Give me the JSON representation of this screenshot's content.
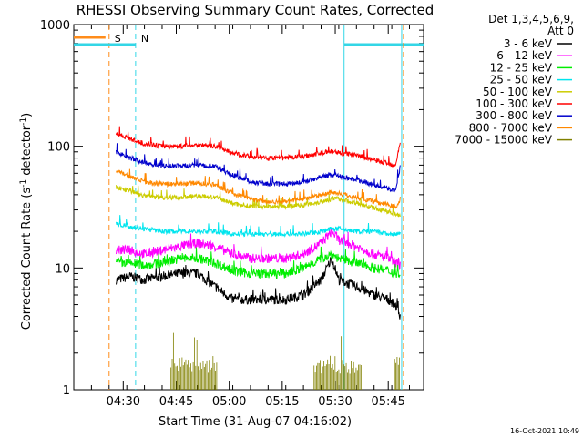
{
  "chart_data": {
    "type": "line",
    "title": "RHESSI Observing Summary Count Rates, Corrected",
    "xlabel": "Start Time (31-Aug-07 04:16:02)",
    "ylabel": "Corrected Count Rate (s",
    "ylabel_sup": "-1",
    "ylabel_tail": " detector",
    "ylabel_close": ")",
    "yscale": "log",
    "ylim": [
      1,
      1000
    ],
    "xlim_minutes": [
      0,
      99
    ],
    "x_tick_labels": [
      "04:30",
      "04:45",
      "05:00",
      "05:15",
      "05:30",
      "05:45"
    ],
    "x_tick_minutes": [
      14,
      29,
      44,
      59,
      74,
      89
    ],
    "y_tick_labels": [
      "1",
      "10",
      "100",
      "1000"
    ],
    "y_tick_values": [
      1,
      10,
      100,
      1000
    ],
    "legend_title": [
      "Det 1,3,4,5,6,9,",
      "Att 0"
    ],
    "footer": "16-Oct-2021 10:49",
    "markers": [
      {
        "label": "S",
        "color": "#ff8c1a",
        "minute": 10
      },
      {
        "label": "N",
        "color": "#33d6e6",
        "minute": 17.5
      }
    ],
    "series": [
      {
        "name": "3 - 6 keV",
        "color": "#000000",
        "x": [
          12,
          16,
          20,
          25,
          30,
          35,
          40,
          45,
          50,
          55,
          60,
          65,
          70,
          73,
          75,
          80,
          85,
          89,
          91,
          92.5
        ],
        "y": [
          8,
          8.5,
          8,
          8.5,
          9,
          9,
          7,
          5.5,
          5.5,
          5.5,
          5.5,
          6,
          8,
          12,
          8,
          7,
          6,
          5.5,
          5,
          4
        ]
      },
      {
        "name": "6 - 12 keV",
        "color": "#ff00ff",
        "x": [
          12,
          16,
          20,
          25,
          30,
          35,
          40,
          45,
          50,
          55,
          60,
          65,
          70,
          73,
          75,
          80,
          85,
          89,
          91,
          92.5
        ],
        "y": [
          14,
          14,
          13,
          14,
          15,
          16,
          15,
          13,
          12,
          12,
          12,
          13,
          16,
          20,
          17,
          15,
          13,
          12,
          11,
          10.5
        ]
      },
      {
        "name": "12 - 25 keV",
        "color": "#00ee00",
        "x": [
          12,
          16,
          20,
          25,
          30,
          35,
          40,
          45,
          50,
          55,
          60,
          65,
          70,
          73,
          75,
          80,
          85,
          89,
          91,
          92.5
        ],
        "y": [
          11,
          11,
          10.5,
          11,
          12,
          12,
          11,
          9.5,
          9,
          9,
          9,
          10,
          12,
          13,
          12,
          11,
          10,
          9.5,
          9,
          9
        ]
      },
      {
        "name": "25 - 50 keV",
        "color": "#00e5ee",
        "x": [
          12,
          16,
          20,
          25,
          30,
          35,
          40,
          45,
          50,
          55,
          60,
          65,
          70,
          73,
          75,
          80,
          85,
          89,
          91,
          92.5
        ],
        "y": [
          23,
          22,
          21,
          20,
          20,
          20,
          20,
          19,
          19,
          19,
          19,
          19,
          20,
          21,
          21,
          20,
          20,
          19,
          19,
          19
        ]
      },
      {
        "name": "50 - 100 keV",
        "color": "#cccc00",
        "x": [
          12,
          16,
          20,
          25,
          30,
          35,
          40,
          45,
          50,
          55,
          60,
          65,
          70,
          73,
          75,
          80,
          85,
          89,
          91,
          92.5
        ],
        "y": [
          46,
          43,
          39,
          38,
          38,
          39,
          38,
          34,
          32,
          32,
          32,
          33,
          35,
          37,
          37,
          34,
          31,
          29,
          28,
          27
        ]
      },
      {
        "name": "100 - 300 keV",
        "color": "#ff0000",
        "x": [
          12,
          16,
          20,
          25,
          30,
          35,
          40,
          45,
          50,
          55,
          60,
          65,
          70,
          73,
          75,
          80,
          85,
          89,
          91,
          92.5
        ],
        "y": [
          128,
          115,
          105,
          100,
          100,
          103,
          100,
          88,
          82,
          80,
          80,
          83,
          88,
          91,
          89,
          84,
          77,
          72,
          70,
          110
        ]
      },
      {
        "name": "300 - 800 keV",
        "color": "#0000cc",
        "x": [
          12,
          16,
          20,
          25,
          30,
          35,
          40,
          45,
          50,
          55,
          60,
          65,
          70,
          73,
          75,
          80,
          85,
          89,
          91,
          92.5
        ],
        "y": [
          90,
          80,
          73,
          69,
          69,
          70,
          68,
          58,
          51,
          49,
          49,
          51,
          56,
          58,
          57,
          53,
          48,
          45,
          43,
          70
        ]
      },
      {
        "name": "800 - 7000 keV",
        "color": "#ff8800",
        "x": [
          12,
          16,
          20,
          25,
          30,
          35,
          40,
          45,
          50,
          55,
          60,
          65,
          70,
          73,
          75,
          80,
          85,
          89,
          91,
          92.5
        ],
        "y": [
          63,
          56,
          51,
          49,
          49,
          50,
          48,
          41,
          37,
          35,
          35,
          37,
          40,
          42,
          41,
          38,
          35,
          33,
          32,
          35
        ]
      },
      {
        "name": "7000 - 15000 keV",
        "color": "#808000",
        "x": [
          28,
          29,
          30,
          31,
          32,
          33,
          34,
          35,
          36,
          37,
          38,
          39,
          40,
          68,
          69,
          70,
          71,
          72,
          73,
          74,
          75,
          76,
          77,
          78,
          79,
          80,
          81,
          91,
          92
        ],
        "y": [
          1.8,
          1.8,
          1.8,
          1.8,
          1.8,
          1.8,
          1.8,
          1.8,
          1.8,
          1.8,
          1.8,
          1.8,
          1.8,
          1.8,
          1.8,
          1.8,
          1.8,
          1.8,
          1.8,
          1.8,
          1.8,
          1.8,
          1.8,
          1.8,
          1.8,
          1.8,
          1.8,
          1.8,
          1.8
        ]
      }
    ]
  }
}
